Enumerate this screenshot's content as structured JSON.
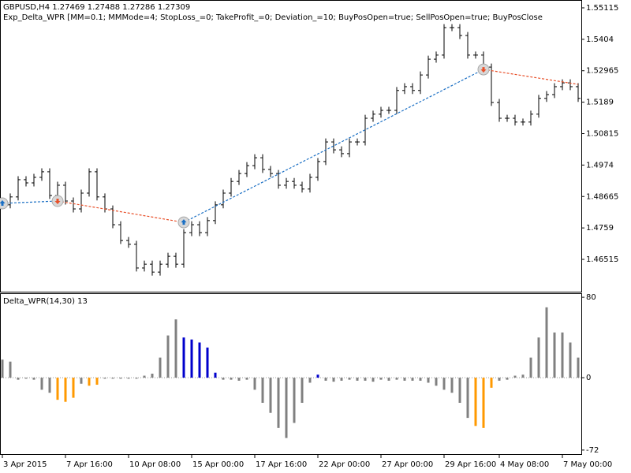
{
  "chart_data": [
    {
      "type": "ohlc",
      "title": "GBPUSD,H4  1.27469 1.27488 1.27286 1.27309",
      "subtitle": "Exp_Delta_WPR [MM=0.1; MMMode=4; StopLoss_=0; TakeProfit_=0; Deviation_=10; BuyPosOpen=true; SellPosOpen=true; BuyPosClose",
      "color": "#000000",
      "open": [
        1.485,
        1.4838,
        1.4865,
        1.4924,
        1.4913,
        1.4932,
        1.4951,
        1.487,
        1.4905,
        1.4851,
        1.4824,
        1.4878,
        1.4951,
        1.4865,
        1.4824,
        1.477,
        1.4716,
        1.4703,
        1.4622,
        1.4635,
        1.4608,
        1.4635,
        1.4662,
        1.4635,
        1.4743,
        1.477,
        1.4743,
        1.4784,
        1.4838,
        1.4878,
        1.4918,
        1.4945,
        1.4972,
        1.4999,
        1.4959,
        1.4945,
        1.4905,
        1.4918,
        1.4905,
        1.4892,
        1.4932,
        1.4986,
        1.5053,
        1.5026,
        1.5013,
        1.5053,
        1.5053,
        1.5134,
        1.5148,
        1.5161,
        1.5161,
        1.5229,
        1.5242,
        1.5229,
        1.5282,
        1.5336,
        1.535,
        1.5444,
        1.5444,
        1.5417,
        1.535,
        1.535,
        1.5309,
        1.5188,
        1.5134,
        1.5134,
        1.5121,
        1.5121,
        1.5148,
        1.5202,
        1.5215,
        1.5242,
        1.5255,
        1.5242
      ],
      "high": [
        1.4862,
        1.4877,
        1.4936,
        1.4936,
        1.4944,
        1.4963,
        1.4963,
        1.4917,
        1.4917,
        1.4863,
        1.489,
        1.4963,
        1.4963,
        1.4877,
        1.4836,
        1.4782,
        1.4728,
        1.4715,
        1.4647,
        1.4647,
        1.4647,
        1.4674,
        1.4674,
        1.4755,
        1.4782,
        1.4782,
        1.4796,
        1.485,
        1.489,
        1.493,
        1.4957,
        1.4984,
        1.5011,
        1.5011,
        1.4971,
        1.4957,
        1.493,
        1.493,
        1.4917,
        1.4944,
        1.4998,
        1.5065,
        1.5065,
        1.5038,
        1.5065,
        1.5065,
        1.5146,
        1.516,
        1.5173,
        1.5173,
        1.5241,
        1.5254,
        1.5254,
        1.5294,
        1.5348,
        1.5362,
        1.5456,
        1.5456,
        1.5456,
        1.5429,
        1.5362,
        1.5362,
        1.5321,
        1.52,
        1.5146,
        1.5146,
        1.5133,
        1.516,
        1.5214,
        1.5227,
        1.5254,
        1.5267,
        1.5267,
        1.5254
      ],
      "low": [
        1.4826,
        1.4826,
        1.4853,
        1.4901,
        1.4901,
        1.492,
        1.4858,
        1.4858,
        1.4839,
        1.4812,
        1.4812,
        1.4866,
        1.4853,
        1.4812,
        1.4758,
        1.4704,
        1.4691,
        1.461,
        1.461,
        1.4596,
        1.4596,
        1.4623,
        1.4623,
        1.4623,
        1.4731,
        1.4731,
        1.4731,
        1.4772,
        1.4826,
        1.4866,
        1.4906,
        1.4933,
        1.496,
        1.4947,
        1.4933,
        1.4893,
        1.4893,
        1.4893,
        1.488,
        1.488,
        1.492,
        1.4974,
        1.5014,
        1.5001,
        1.5001,
        1.5041,
        1.5041,
        1.5122,
        1.5136,
        1.5149,
        1.5149,
        1.5217,
        1.5217,
        1.5217,
        1.527,
        1.5324,
        1.5338,
        1.5432,
        1.5405,
        1.5338,
        1.5338,
        1.5297,
        1.5176,
        1.5122,
        1.5122,
        1.5109,
        1.5109,
        1.5109,
        1.5136,
        1.519,
        1.5203,
        1.523,
        1.523,
        1.519
      ],
      "close": [
        1.4838,
        1.4865,
        1.4924,
        1.4913,
        1.4932,
        1.4951,
        1.487,
        1.4905,
        1.4851,
        1.4824,
        1.4878,
        1.4951,
        1.4865,
        1.4824,
        1.477,
        1.4716,
        1.4703,
        1.4622,
        1.4635,
        1.4608,
        1.4635,
        1.4662,
        1.4635,
        1.4743,
        1.477,
        1.4743,
        1.4784,
        1.4838,
        1.4878,
        1.4918,
        1.4945,
        1.4972,
        1.4999,
        1.4959,
        1.4945,
        1.4905,
        1.4918,
        1.4905,
        1.4892,
        1.4932,
        1.4986,
        1.5053,
        1.5026,
        1.5013,
        1.5053,
        1.5053,
        1.5134,
        1.5148,
        1.5161,
        1.5161,
        1.5229,
        1.5242,
        1.5229,
        1.5282,
        1.5336,
        1.535,
        1.5444,
        1.5444,
        1.5417,
        1.535,
        1.535,
        1.5309,
        1.5188,
        1.5134,
        1.5134,
        1.5121,
        1.5121,
        1.5148,
        1.5202,
        1.5215,
        1.5242,
        1.5255,
        1.5242,
        1.5202
      ],
      "ylim": [
        1.4541,
        1.5533
      ],
      "yticks": [
        1.55115,
        1.5404,
        1.52965,
        1.5189,
        1.50815,
        1.4974,
        1.48665,
        1.4759,
        1.46515
      ],
      "trades": [
        {
          "index": 0,
          "price": 1.4843,
          "side": "buy"
        },
        {
          "index": 7,
          "price": 1.4851,
          "side": "sell"
        },
        {
          "index": 23,
          "price": 1.4778,
          "side": "buy"
        },
        {
          "index": 61,
          "price": 1.5301,
          "side": "sell"
        },
        {
          "index": 73,
          "price": 1.525
        }
      ],
      "trade_colors": {
        "buy": "#1a6fc4",
        "sell": "#e8502a"
      }
    },
    {
      "type": "bar",
      "title": "Delta_WPR(14,30) 13",
      "categories": [
        "3 Apr 2015",
        null,
        null,
        null,
        null,
        null,
        null,
        null,
        "7 Apr 16:00",
        null,
        null,
        null,
        null,
        null,
        null,
        null,
        "10 Apr 08:00",
        null,
        null,
        null,
        null,
        null,
        null,
        null,
        "15 Apr 00:00",
        null,
        null,
        null,
        null,
        null,
        null,
        null,
        "17 Apr 16:00",
        null,
        null,
        null,
        null,
        null,
        null,
        null,
        "22 Apr 00:00",
        null,
        null,
        null,
        null,
        null,
        null,
        null,
        "27 Apr 00:00",
        null,
        null,
        null,
        null,
        null,
        null,
        null,
        "29 Apr 16:00",
        null,
        null,
        null,
        null,
        null,
        null,
        "4 May 08:00",
        null,
        null,
        null,
        null,
        null,
        null,
        null,
        "7 May 00:00",
        null,
        null
      ],
      "values": [
        18,
        16,
        -2,
        -1,
        -2,
        -12,
        -15,
        -22,
        -24,
        -20,
        -6,
        -8,
        -7,
        -1,
        -1,
        -1,
        -1,
        -1,
        2,
        4,
        20,
        42,
        58,
        40,
        38,
        35,
        30,
        5,
        -2,
        -2,
        -3,
        -2,
        -12,
        -25,
        -35,
        -50,
        -60,
        -45,
        -25,
        -5,
        3,
        -3,
        -4,
        -3,
        -2,
        -3,
        -3,
        -4,
        -2,
        -3,
        -2,
        -3,
        -3,
        -3,
        -5,
        -8,
        -12,
        -15,
        -25,
        -40,
        -48,
        -50,
        -10,
        -3,
        -2,
        2,
        3,
        20,
        40,
        70,
        45,
        45,
        35,
        20
      ],
      "colors": [
        "#808080",
        "#808080",
        "#808080",
        "#808080",
        "#808080",
        "#808080",
        "#808080",
        "#ff9900",
        "#ff9900",
        "#ff9900",
        "#808080",
        "#ff9900",
        "#ff9900",
        "#808080",
        "#808080",
        "#808080",
        "#808080",
        "#808080",
        "#808080",
        "#808080",
        "#808080",
        "#808080",
        "#808080",
        "#0000cc",
        "#0000cc",
        "#0000cc",
        "#0000cc",
        "#0000cc",
        "#808080",
        "#808080",
        "#808080",
        "#808080",
        "#808080",
        "#808080",
        "#808080",
        "#808080",
        "#808080",
        "#808080",
        "#808080",
        "#808080",
        "#0000cc",
        "#808080",
        "#808080",
        "#808080",
        "#808080",
        "#808080",
        "#808080",
        "#808080",
        "#808080",
        "#808080",
        "#808080",
        "#808080",
        "#808080",
        "#808080",
        "#808080",
        "#808080",
        "#808080",
        "#808080",
        "#808080",
        "#808080",
        "#ff9900",
        "#ff9900",
        "#ff9900",
        "#808080",
        "#808080",
        "#808080",
        "#808080",
        "#808080",
        "#808080",
        "#808080",
        "#808080",
        "#808080",
        "#808080",
        "#808080"
      ],
      "ylim": [
        -76,
        84
      ],
      "yticks": [
        80,
        0,
        -72
      ]
    }
  ]
}
